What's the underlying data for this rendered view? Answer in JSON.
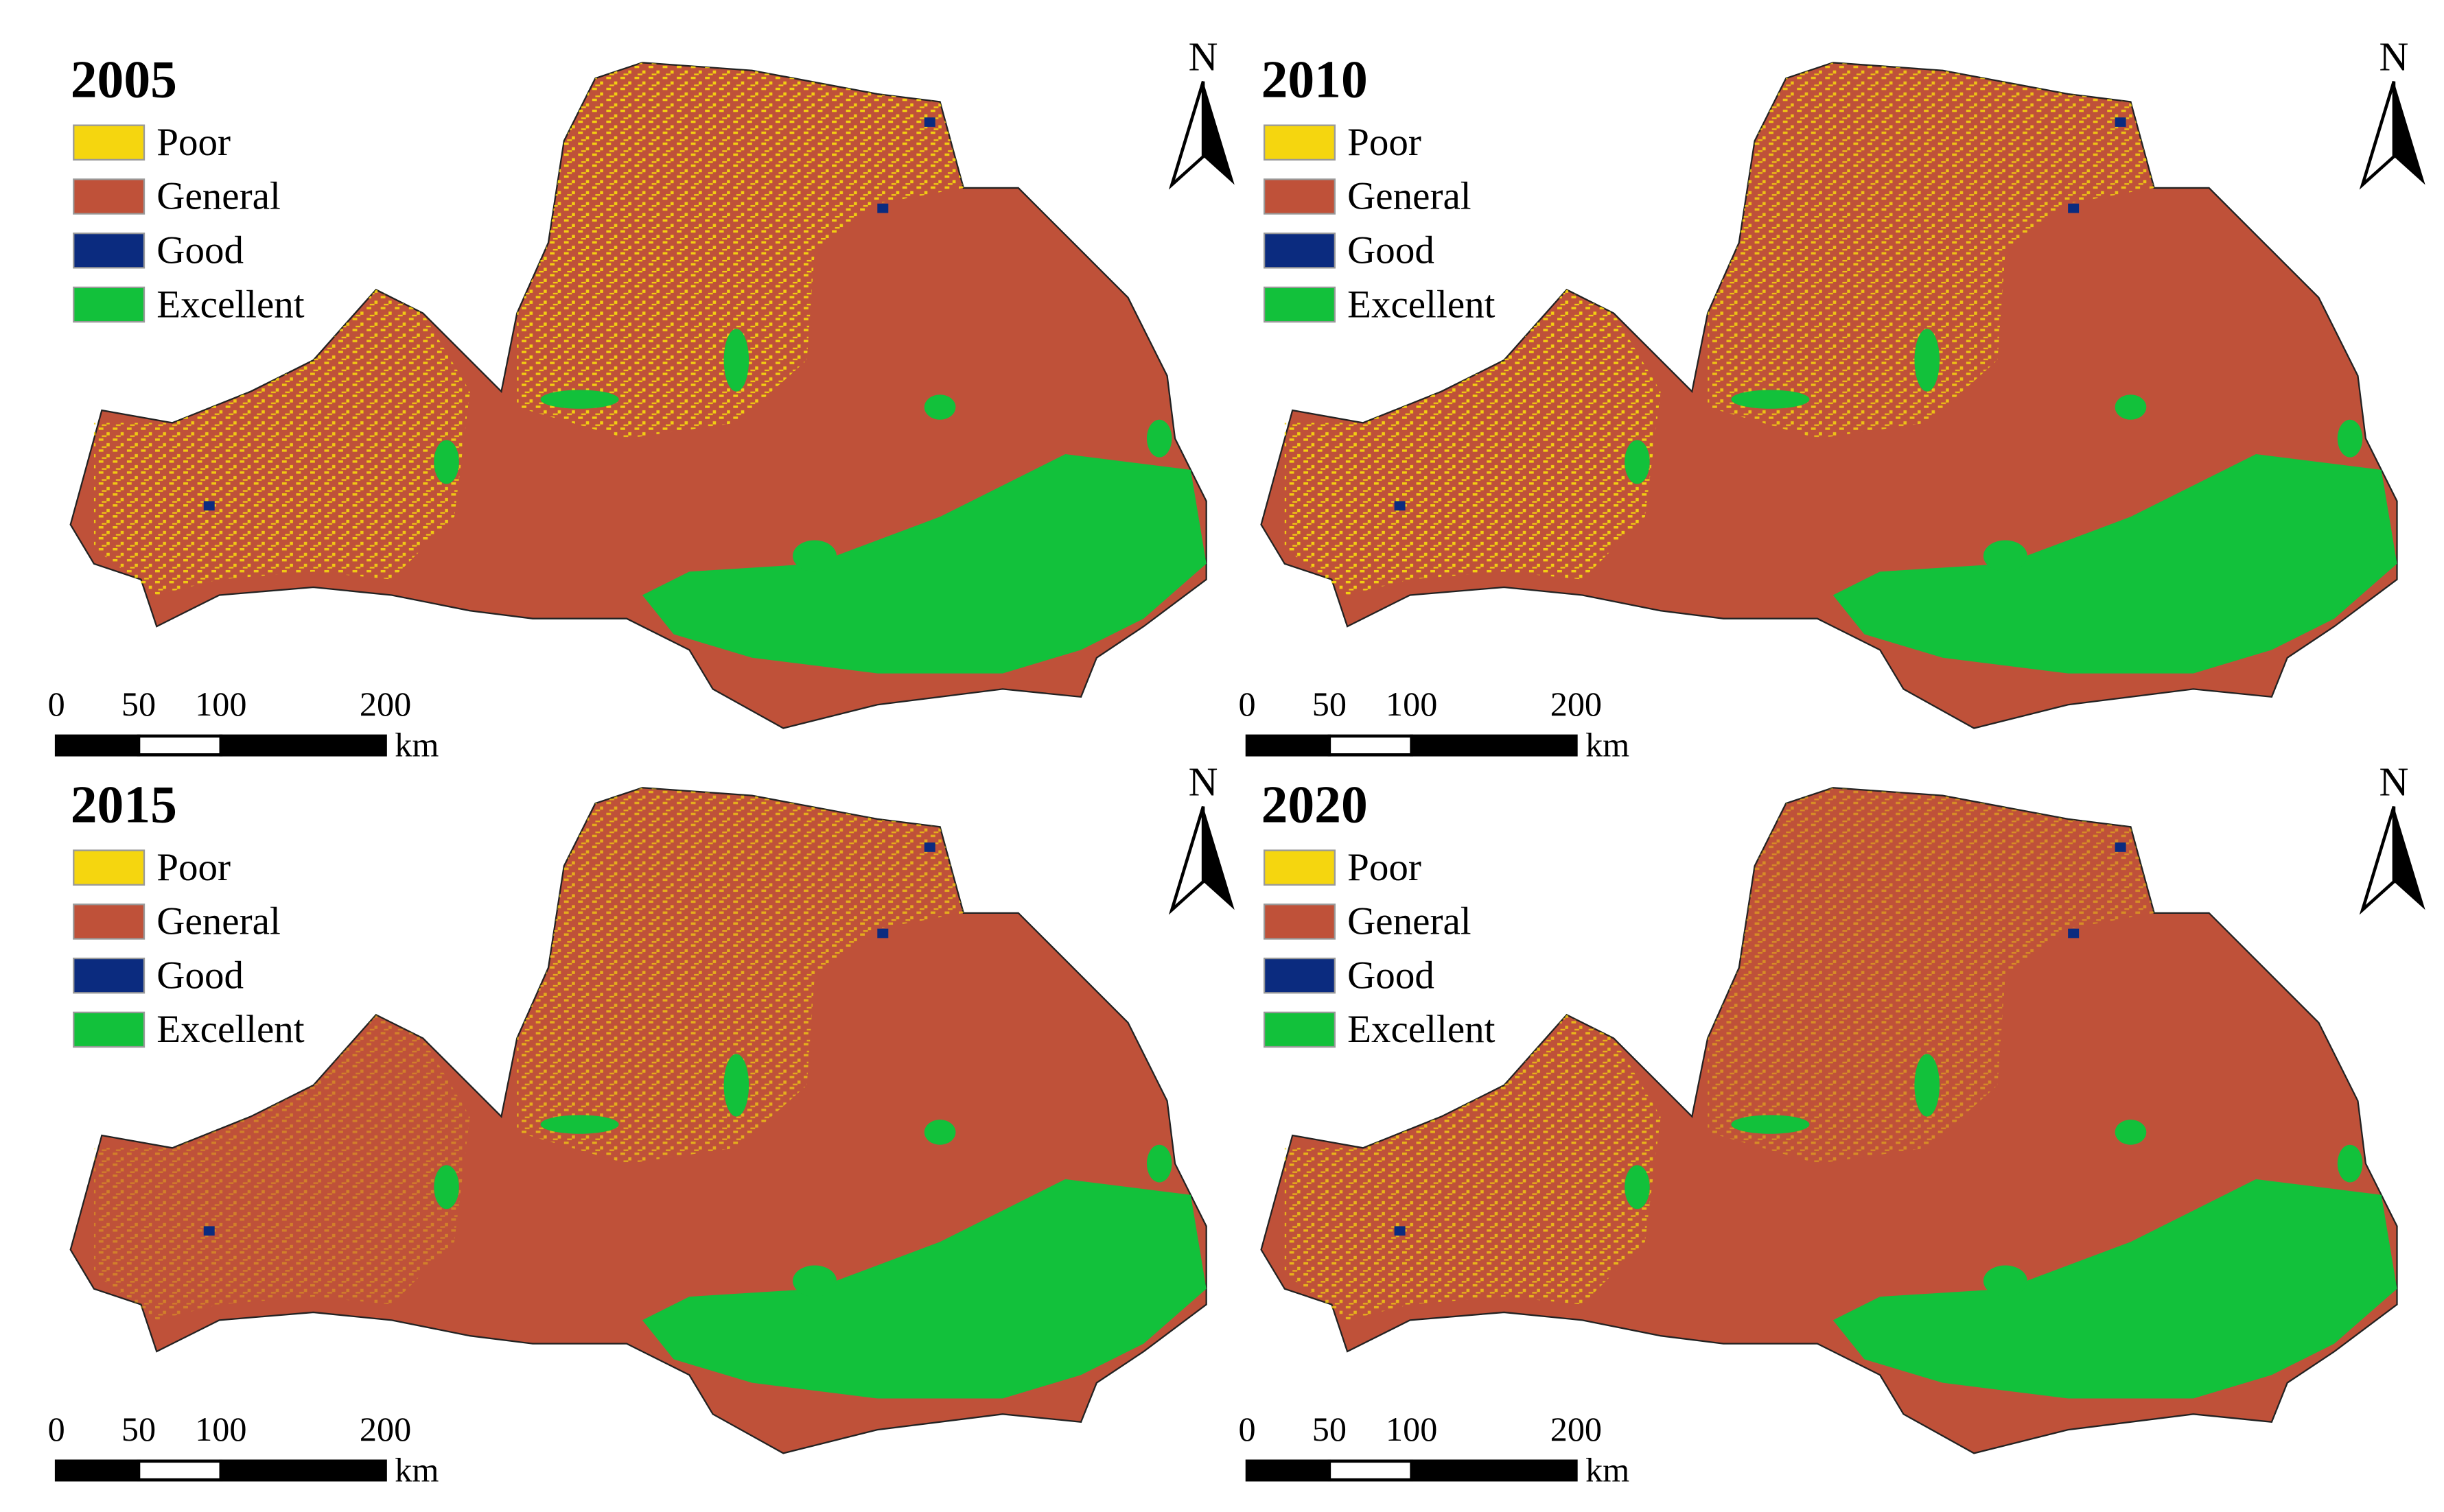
{
  "panels": [
    {
      "title": "2005"
    },
    {
      "title": "2010"
    },
    {
      "title": "2015"
    },
    {
      "title": "2020"
    }
  ],
  "legend": [
    {
      "label": "Poor",
      "color": "#f5d60f"
    },
    {
      "label": "General",
      "color": "#bf5139"
    },
    {
      "label": "Good",
      "color": "#0b2b7f"
    },
    {
      "label": "Excellent",
      "color": "#12c13b"
    }
  ],
  "north": "N",
  "scale_bar": {
    "ticks": [
      0,
      50,
      100,
      200
    ],
    "unit": "km"
  }
}
